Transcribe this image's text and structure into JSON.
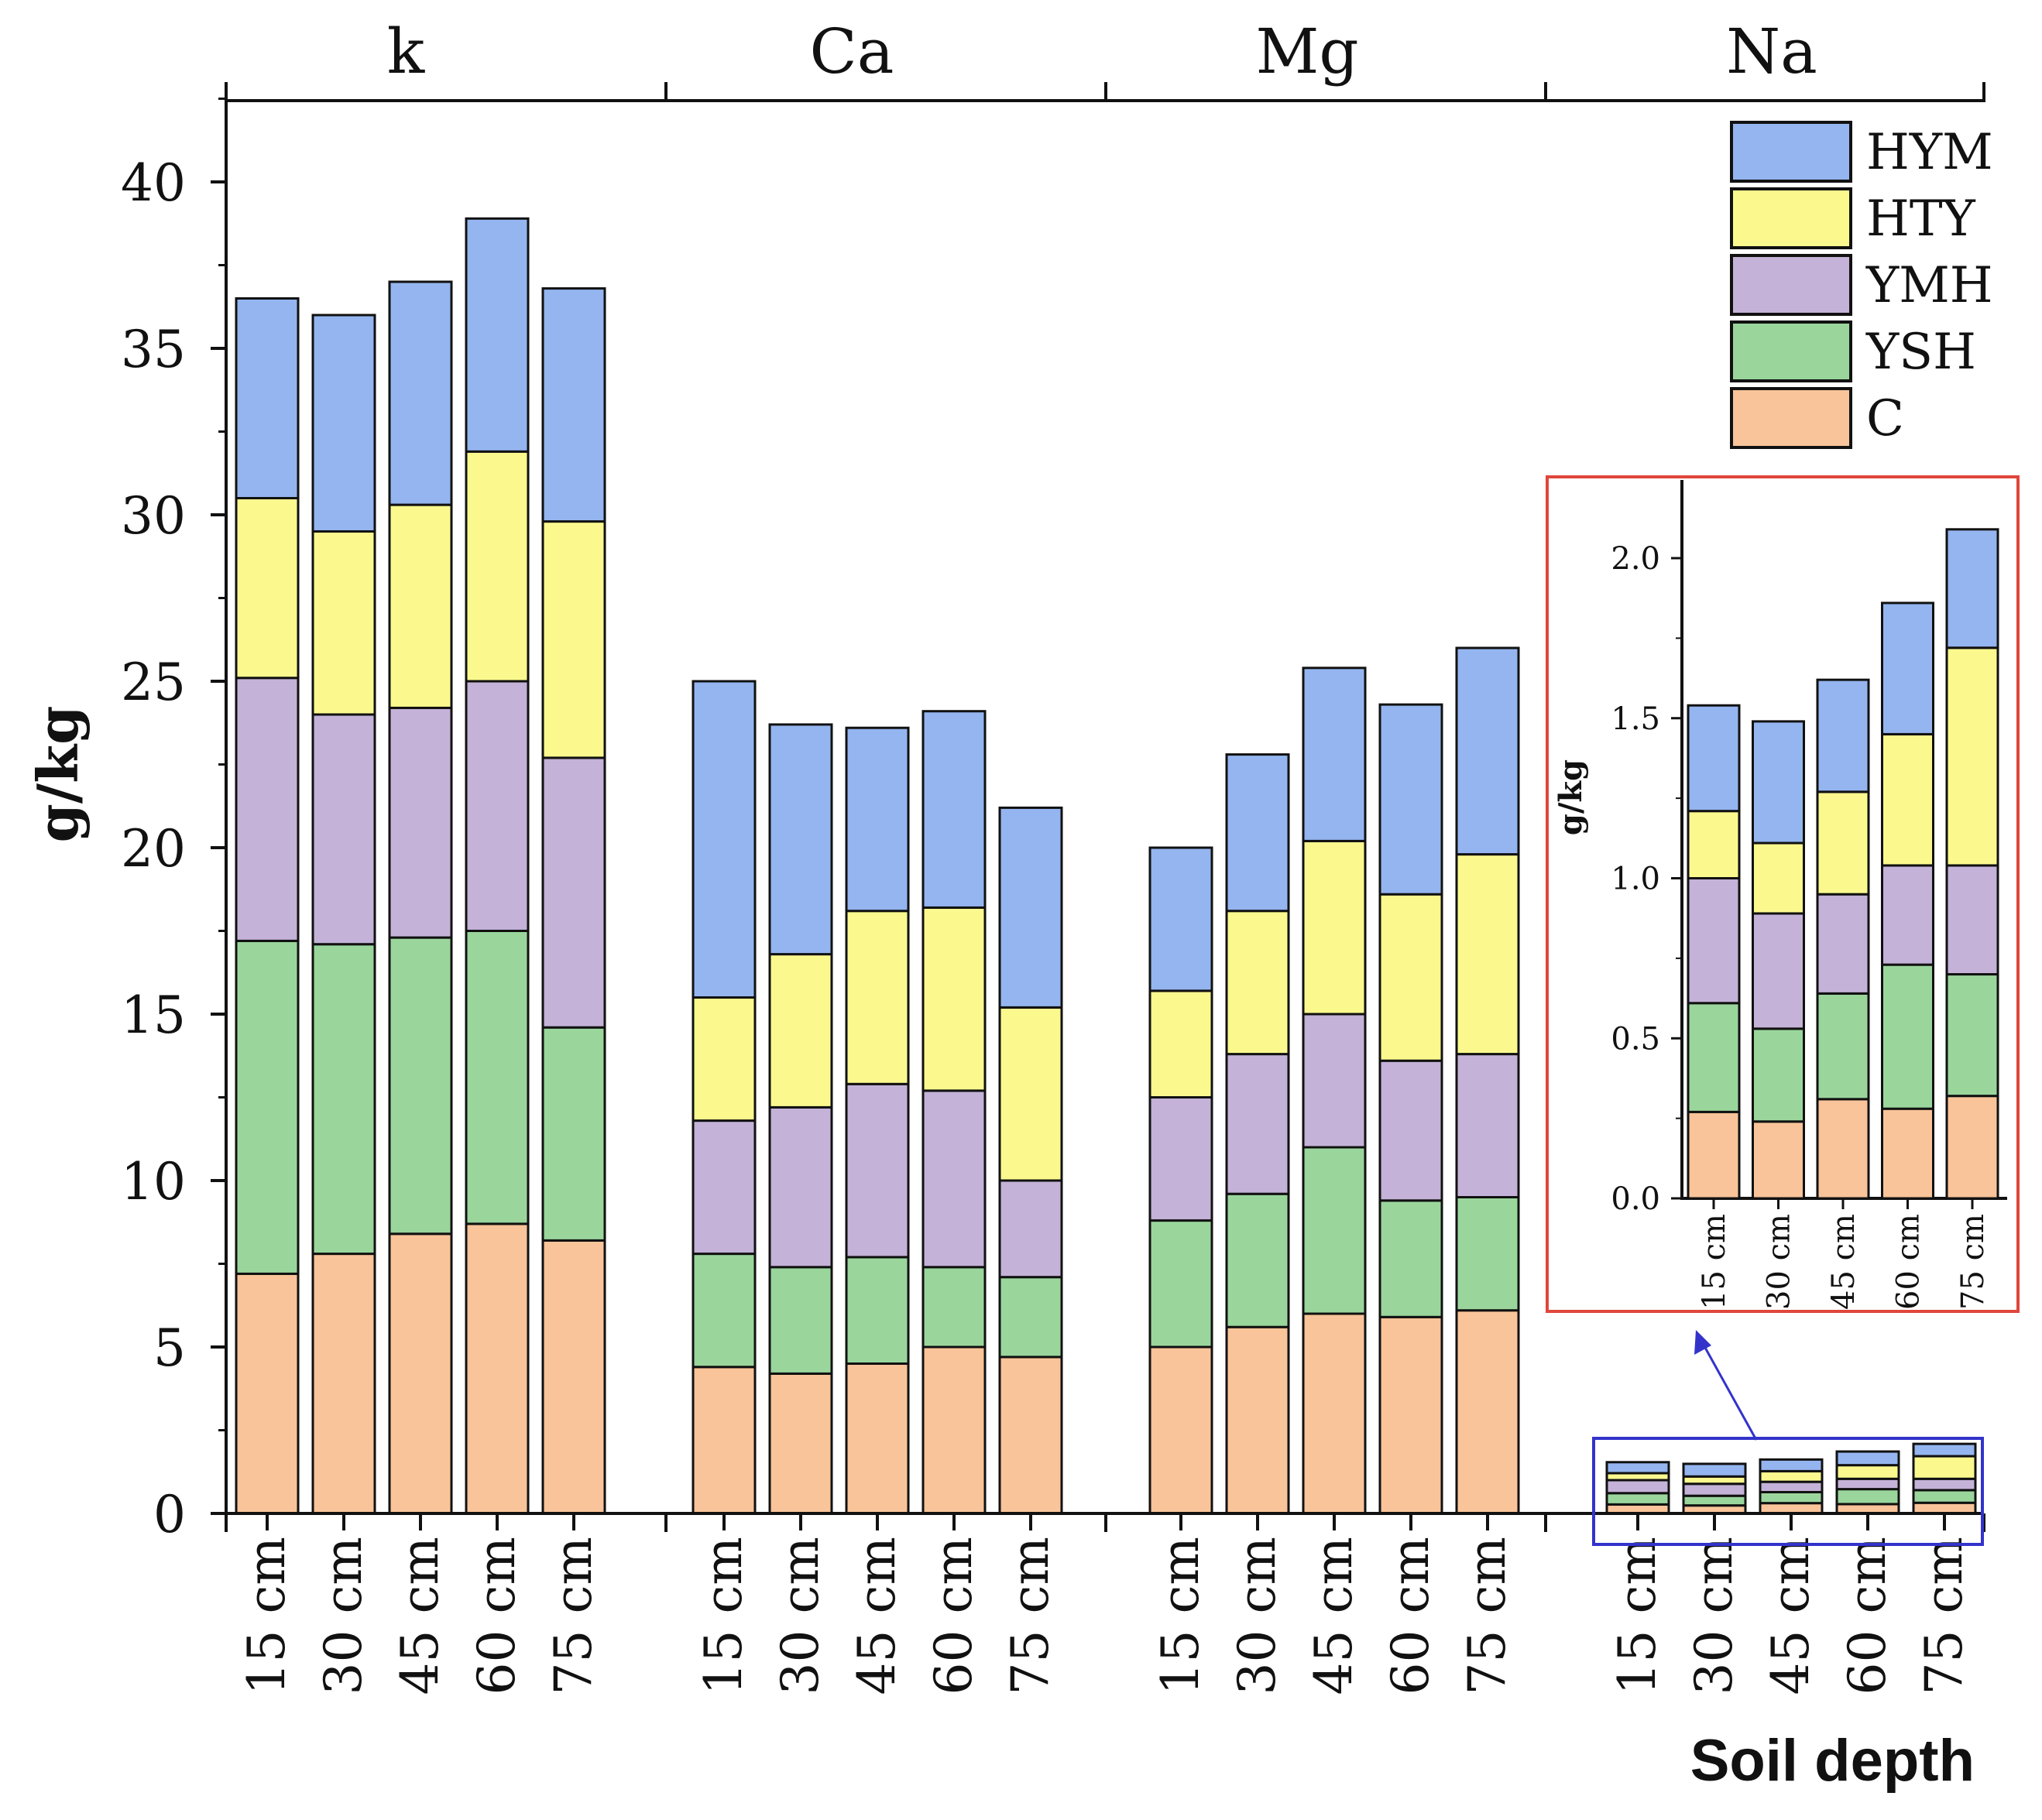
{
  "chart_data": {
    "type": "bar",
    "stacked": true,
    "ylabel": "g/kg",
    "xlabel": "Soil depth",
    "ylim": [
      0,
      43
    ],
    "yticks": [
      0,
      5,
      10,
      15,
      20,
      25,
      30,
      35,
      40
    ],
    "categories": [
      "15 cm",
      "30 cm",
      "45 cm",
      "60 cm",
      "75 cm"
    ],
    "groups": [
      "k",
      "Ca",
      "Mg",
      "Na"
    ],
    "series_names": [
      "C",
      "YSH",
      "YMH",
      "HTY",
      "HYM"
    ],
    "legend_order": [
      "HYM",
      "HTY",
      "YMH",
      "YSH",
      "C"
    ],
    "legend_placement": "top-right",
    "colors": {
      "C": "#f9c499",
      "YSH": "#9ad69c",
      "YMH": "#c4b2d8",
      "HTY": "#fbf98e",
      "HYM": "#94b5ef",
      "inset_border": "#e0463c",
      "zoom_box": "#3333cc",
      "bar_edge": "#111111"
    },
    "data": {
      "k": {
        "C": [
          7.2,
          7.8,
          8.4,
          8.7,
          8.2
        ],
        "YSH": [
          10.0,
          9.3,
          8.9,
          8.8,
          6.4
        ],
        "YMH": [
          7.9,
          6.9,
          6.9,
          7.5,
          8.1
        ],
        "HTY": [
          5.4,
          5.5,
          6.1,
          6.9,
          7.1
        ],
        "HYM": [
          6.0,
          6.5,
          6.7,
          7.0,
          7.0
        ]
      },
      "Ca": {
        "C": [
          4.4,
          4.2,
          4.5,
          5.0,
          4.7
        ],
        "YSH": [
          3.4,
          3.2,
          3.2,
          2.4,
          2.4
        ],
        "YMH": [
          4.0,
          4.8,
          5.2,
          5.3,
          2.9
        ],
        "HTY": [
          3.7,
          4.6,
          5.2,
          5.5,
          5.2
        ],
        "HYM": [
          9.5,
          6.9,
          5.5,
          5.9,
          6.0
        ]
      },
      "Mg": {
        "C": [
          5.0,
          5.6,
          6.0,
          5.9,
          6.1
        ],
        "YSH": [
          3.8,
          4.0,
          5.0,
          3.5,
          3.4
        ],
        "YMH": [
          3.7,
          4.2,
          4.0,
          4.2,
          4.3
        ],
        "HTY": [
          3.2,
          4.3,
          5.2,
          5.0,
          6.0
        ],
        "HYM": [
          4.3,
          4.7,
          5.2,
          5.7,
          6.2
        ]
      },
      "Na": {
        "C": [
          0.27,
          0.24,
          0.31,
          0.28,
          0.32
        ],
        "YSH": [
          0.34,
          0.29,
          0.33,
          0.45,
          0.38
        ],
        "YMH": [
          0.39,
          0.36,
          0.31,
          0.31,
          0.34
        ],
        "HTY": [
          0.21,
          0.22,
          0.32,
          0.41,
          0.68
        ],
        "HYM": [
          0.33,
          0.38,
          0.35,
          0.41,
          0.37
        ]
      }
    },
    "inset": {
      "group": "Na",
      "ylabel": "g/kg",
      "ylim": [
        0,
        2.2
      ],
      "yticks": [
        "0.0",
        "0.5",
        "1.0",
        "1.5",
        "2.0"
      ]
    }
  }
}
